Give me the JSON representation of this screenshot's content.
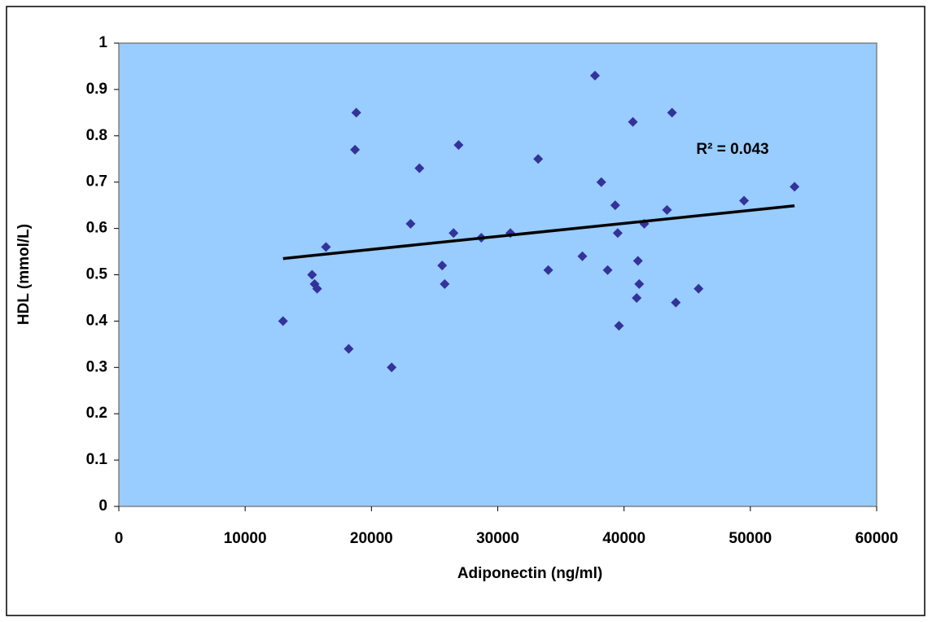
{
  "chart_data": {
    "type": "scatter",
    "x_label": "Adiponectin (ng/ml)",
    "y_label": "HDL (mmol/L)",
    "annotation": "R² = 0.043",
    "color": "#333399",
    "background": "#99ccff",
    "grid": false,
    "x": [
      13000,
      15300,
      15500,
      15700,
      16400,
      18200,
      18700,
      18800,
      21600,
      23100,
      23800,
      25600,
      25800,
      26500,
      26900,
      28700,
      31000,
      33200,
      34000,
      36700,
      37700,
      38200,
      38700,
      39300,
      39500,
      39600,
      40700,
      41000,
      41100,
      41200,
      41600,
      43400,
      43800,
      44100,
      45900,
      49500,
      53500
    ],
    "y": [
      0.4,
      0.5,
      0.48,
      0.47,
      0.56,
      0.34,
      0.77,
      0.85,
      0.3,
      0.61,
      0.73,
      0.52,
      0.48,
      0.59,
      0.78,
      0.58,
      0.59,
      0.75,
      0.51,
      0.54,
      0.93,
      0.7,
      0.51,
      0.65,
      0.59,
      0.39,
      0.83,
      0.45,
      0.53,
      0.48,
      0.61,
      0.64,
      0.85,
      0.44,
      0.47,
      0.66,
      0.69
    ],
    "trendline": {
      "color": "#000000",
      "x": [
        13000,
        53500
      ],
      "y": [
        0.535,
        0.649
      ]
    },
    "xlim": [
      0,
      60000
    ],
    "xticks": [
      0,
      10000,
      20000,
      30000,
      40000,
      50000,
      60000
    ],
    "ylim": [
      0,
      1
    ],
    "yticks": [
      0,
      0.1,
      0.2,
      0.3,
      0.4,
      0.5,
      0.6,
      0.7,
      0.8,
      0.9,
      1
    ]
  }
}
